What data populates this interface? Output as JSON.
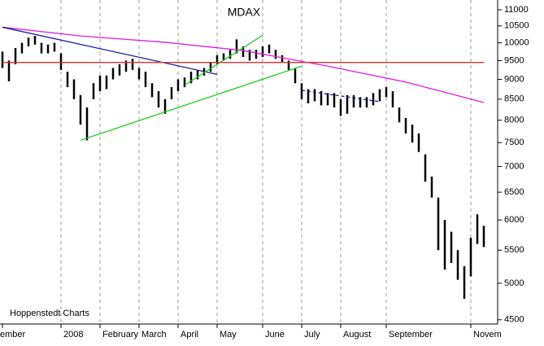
{
  "chart_data": {
    "type": "ohlc",
    "title": "MDAX",
    "source": "Hoppenstedt Charts",
    "categories": [
      "ember",
      null,
      null,
      null,
      null,
      null,
      null,
      null,
      null,
      "2008",
      null,
      null,
      null,
      null,
      null,
      "February",
      null,
      null,
      null,
      null,
      null,
      "March",
      null,
      null,
      null,
      null,
      null,
      "April",
      null,
      null,
      null,
      null,
      null,
      "May",
      null,
      null,
      null,
      null,
      null,
      null,
      "June",
      null,
      null,
      null,
      null,
      null,
      "July",
      null,
      null,
      null,
      null,
      null,
      "August",
      null,
      null,
      null,
      null,
      null,
      null,
      "September",
      null,
      null,
      null,
      null,
      null,
      null,
      null,
      null,
      null,
      null,
      null,
      null,
      "Novem",
      null,
      null
    ],
    "high": [
      9750,
      9500,
      9850,
      10000,
      10150,
      10200,
      10000,
      9950,
      10000,
      9700,
      9200,
      9000,
      8600,
      8300,
      8900,
      9100,
      9100,
      9300,
      9400,
      9500,
      9550,
      9300,
      9200,
      8900,
      8700,
      8500,
      8800,
      9000,
      9050,
      9200,
      9250,
      9300,
      9450,
      9650,
      9700,
      9800,
      10100,
      9900,
      9800,
      9800,
      9900,
      9950,
      9800,
      9650,
      9500,
      9300,
      8900,
      8750,
      8750,
      8700,
      8650,
      8650,
      8500,
      8600,
      8600,
      8550,
      8550,
      8650,
      8750,
      8800,
      8700,
      8300,
      8050,
      7900,
      7700,
      7250,
      6800,
      6400,
      6000,
      5800,
      5500,
      5250,
      5700,
      6100,
      5900
    ],
    "low": [
      9300,
      8950,
      9400,
      9700,
      9900,
      9950,
      9700,
      9700,
      9750,
      9250,
      8800,
      8500,
      7900,
      7550,
      8500,
      8700,
      8750,
      9000,
      9100,
      9200,
      9250,
      9000,
      8800,
      8550,
      8300,
      8150,
      8500,
      8700,
      8800,
      8900,
      9000,
      9100,
      9200,
      9400,
      9500,
      9550,
      9700,
      9600,
      9500,
      9550,
      9600,
      9700,
      9550,
      9450,
      9250,
      8900,
      8500,
      8400,
      8450,
      8350,
      8350,
      8300,
      8100,
      8150,
      8300,
      8300,
      8300,
      8350,
      8450,
      8550,
      8300,
      7950,
      7700,
      7500,
      7300,
      6700,
      6400,
      5500,
      5200,
      5300,
      5050,
      4780,
      5100,
      5600,
      5550
    ],
    "bar_color": "#000000",
    "lines": [
      {
        "color": "#e020e0",
        "x": [
          0,
          12,
          25,
          37,
          50,
          62,
          74
        ],
        "values": [
          10460,
          10200,
          10015,
          9780,
          9350,
          8930,
          8420
        ]
      },
      {
        "color": "#1a1aa0",
        "x": [
          0,
          33
        ],
        "values": [
          10460,
          9130
        ]
      },
      {
        "color": "#22cc22",
        "x": [
          12,
          46
        ],
        "values": [
          7550,
          9350
        ]
      },
      {
        "color": "#22cc22",
        "x": [
          28,
          40
        ],
        "values": [
          8850,
          10220
        ]
      },
      {
        "color": "#e03030",
        "x": [
          0,
          74
        ],
        "values": [
          9450,
          9450
        ]
      },
      {
        "color": "#1a1aa0",
        "x": [
          46,
          58
        ],
        "values": [
          8720,
          8440
        ],
        "dashed": true
      }
    ],
    "ylim": [
      4445,
      11314
    ],
    "ylog": true,
    "yticks": [
      11000,
      10500,
      10000,
      9500,
      9000,
      8500,
      8000,
      7500,
      7000,
      6500,
      6000,
      5500,
      5000,
      4500
    ],
    "grid": true
  }
}
